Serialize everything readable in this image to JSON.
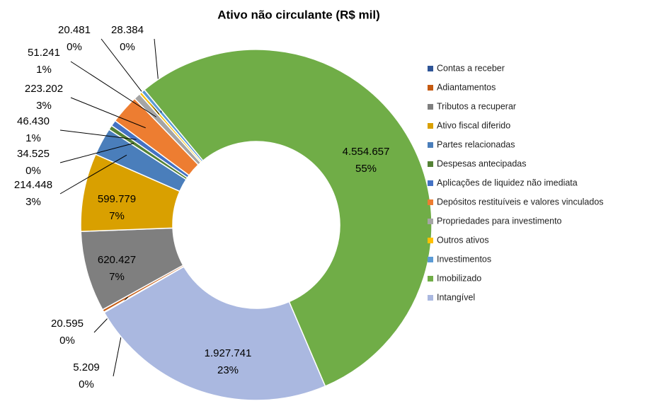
{
  "chart_data": {
    "type": "donut",
    "title": "Ativo não circulante (R$ mil)",
    "categories": [
      "Contas a receber",
      "Adiantamentos",
      "Tributos a recuperar",
      "Ativo fiscal diferido",
      "Partes relacionadas",
      "Despesas antecipadas",
      "Aplicações de liquidez não imediata",
      "Depósitos restituíveis e valores vinculados",
      "Propriedades para investimento",
      "Outros ativos",
      "Investimentos",
      "Imobilizado",
      "Intangível"
    ],
    "values": [
      5209,
      20595,
      620427,
      599779,
      214448,
      34525,
      46430,
      223202,
      51241,
      20481,
      28384,
      4554657,
      1927741
    ],
    "value_labels": [
      "5.209",
      "20.595",
      "620.427",
      "599.779",
      "214.448",
      "34.525",
      "46.430",
      "223.202",
      "51.241",
      "20.481",
      "28.384",
      "4.554.657",
      "1.927.741"
    ],
    "percent_labels": [
      "0%",
      "0%",
      "7%",
      "7%",
      "3%",
      "0%",
      "1%",
      "3%",
      "1%",
      "0%",
      "0%",
      "55%",
      "23%"
    ],
    "colors": [
      "#2f5597",
      "#c55a11",
      "#7f7f7f",
      "#d9a000",
      "#4a7ebb",
      "#548235",
      "#4472c4",
      "#ed7d31",
      "#a5a5a5",
      "#ffc000",
      "#5b9bd5",
      "#70ad47",
      "#aab8e0"
    ],
    "legend": "right"
  }
}
